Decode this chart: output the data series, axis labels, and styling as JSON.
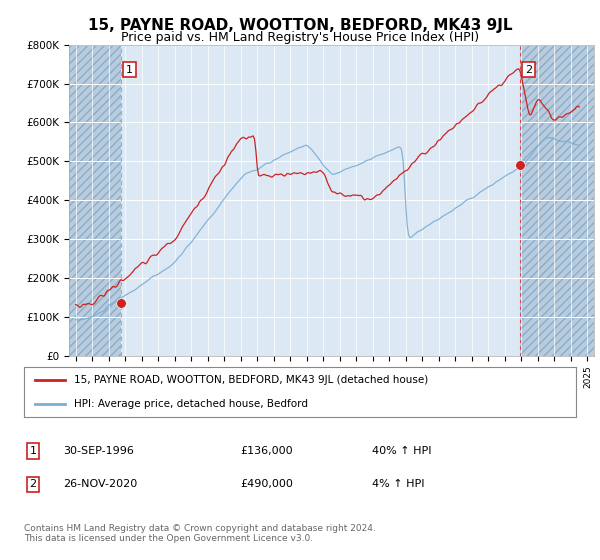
{
  "title": "15, PAYNE ROAD, WOOTTON, BEDFORD, MK43 9JL",
  "subtitle": "Price paid vs. HM Land Registry's House Price Index (HPI)",
  "title_fontsize": 11,
  "subtitle_fontsize": 9,
  "background_color": "#ffffff",
  "plot_bg_color": "#dce9f5",
  "hatch_bg_color": "#c8d8e8",
  "legend_line1": "15, PAYNE ROAD, WOOTTON, BEDFORD, MK43 9JL (detached house)",
  "legend_line2": "HPI: Average price, detached house, Bedford",
  "transaction1_date": "30-SEP-1996",
  "transaction1_price": "£136,000",
  "transaction1_hpi": "40% ↑ HPI",
  "transaction1_year": 1996.75,
  "transaction1_price_val": 136000,
  "transaction2_date": "26-NOV-2020",
  "transaction2_price": "£490,000",
  "transaction2_hpi": "4% ↑ HPI",
  "transaction2_year": 2020.9,
  "transaction2_price_val": 490000,
  "footer": "Contains HM Land Registry data © Crown copyright and database right 2024.\nThis data is licensed under the Open Government Licence v3.0.",
  "red_line_color": "#cc2222",
  "blue_line_color": "#7aadd4",
  "dashed1_color": "#999999",
  "dashed2_color": "#dd4444",
  "ylim": [
    0,
    800000
  ],
  "xlim": [
    1993.6,
    2025.4
  ],
  "yticks": [
    0,
    100000,
    200000,
    300000,
    400000,
    500000,
    600000,
    700000,
    800000
  ],
  "ytick_labels": [
    "£0",
    "£100K",
    "£200K",
    "£300K",
    "£400K",
    "£500K",
    "£600K",
    "£700K",
    "£800K"
  ],
  "xtick_years": [
    1994,
    1995,
    1996,
    1997,
    1998,
    1999,
    2000,
    2001,
    2002,
    2003,
    2004,
    2005,
    2006,
    2007,
    2008,
    2009,
    2010,
    2011,
    2012,
    2013,
    2014,
    2015,
    2016,
    2017,
    2018,
    2019,
    2020,
    2021,
    2022,
    2023,
    2024,
    2025
  ]
}
